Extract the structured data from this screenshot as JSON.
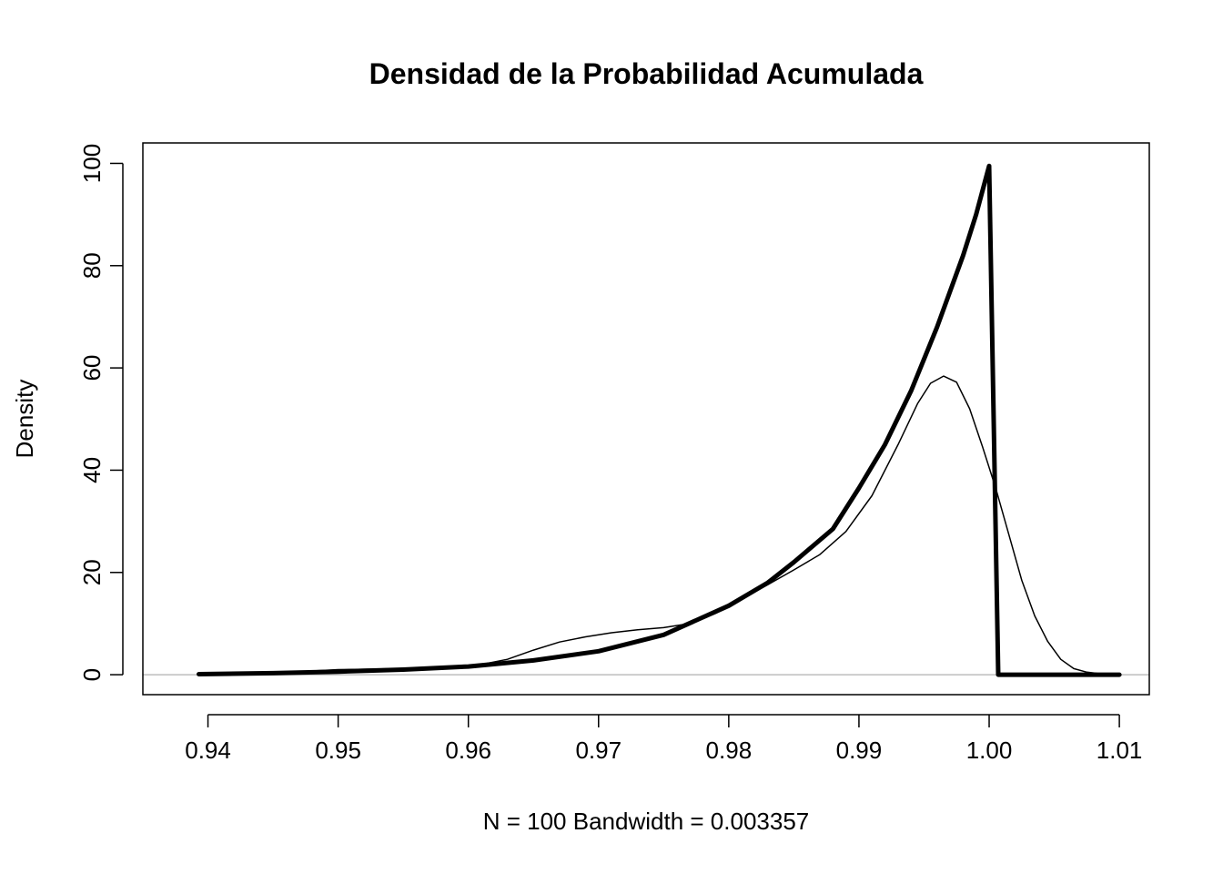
{
  "chart_data": {
    "type": "line",
    "title": "Densidad de la Probabilidad Acumulada",
    "xlabel": "N = 100   Bandwidth = 0.003357",
    "ylabel": "Density",
    "xlim": [
      0.935,
      1.0123
    ],
    "ylim": [
      -3.9,
      104
    ],
    "x_ticks": [
      0.94,
      0.95,
      0.96,
      0.97,
      0.98,
      0.99,
      1.0,
      1.01
    ],
    "x_tick_labels": [
      "0.94",
      "0.95",
      "0.96",
      "0.97",
      "0.98",
      "0.99",
      "1.00",
      "1.01"
    ],
    "y_ticks": [
      0,
      20,
      40,
      60,
      80,
      100
    ],
    "y_tick_labels": [
      "0",
      "20",
      "40",
      "60",
      "80",
      "100"
    ],
    "grid": false,
    "zero_line": true,
    "colors": {
      "lines": "#000000",
      "zero_line": "#bebebe",
      "frame": "#000000"
    },
    "series": [
      {
        "style": "thin",
        "points": [
          [
            0.9393,
            0.1
          ],
          [
            0.943,
            0.2
          ],
          [
            0.947,
            0.6
          ],
          [
            0.95,
            1.0
          ],
          [
            0.953,
            1.1
          ],
          [
            0.956,
            1.3
          ],
          [
            0.959,
            1.6
          ],
          [
            0.961,
            2.0
          ],
          [
            0.963,
            3.0
          ],
          [
            0.965,
            4.8
          ],
          [
            0.967,
            6.4
          ],
          [
            0.969,
            7.4
          ],
          [
            0.971,
            8.2
          ],
          [
            0.973,
            8.8
          ],
          [
            0.975,
            9.2
          ],
          [
            0.977,
            10.0
          ],
          [
            0.979,
            12.0
          ],
          [
            0.981,
            14.8
          ],
          [
            0.983,
            17.6
          ],
          [
            0.985,
            20.5
          ],
          [
            0.987,
            23.5
          ],
          [
            0.989,
            28.0
          ],
          [
            0.991,
            35.0
          ],
          [
            0.993,
            45.0
          ],
          [
            0.9945,
            53.0
          ],
          [
            0.9955,
            57.0
          ],
          [
            0.9965,
            58.4
          ],
          [
            0.9975,
            57.2
          ],
          [
            0.9985,
            52.0
          ],
          [
            0.9995,
            44.5
          ],
          [
            1.0005,
            36.5
          ],
          [
            1.0015,
            27.5
          ],
          [
            1.0025,
            18.5
          ],
          [
            1.0035,
            11.5
          ],
          [
            1.0045,
            6.5
          ],
          [
            1.0055,
            3.0
          ],
          [
            1.0065,
            1.2
          ],
          [
            1.0075,
            0.5
          ],
          [
            1.0085,
            0.2
          ],
          [
            1.01,
            0.0
          ]
        ]
      },
      {
        "style": "thick",
        "points": [
          [
            0.9393,
            0.1
          ],
          [
            0.945,
            0.3
          ],
          [
            0.95,
            0.6
          ],
          [
            0.955,
            1.0
          ],
          [
            0.96,
            1.6
          ],
          [
            0.965,
            2.8
          ],
          [
            0.97,
            4.6
          ],
          [
            0.975,
            7.8
          ],
          [
            0.98,
            13.5
          ],
          [
            0.983,
            18.0
          ],
          [
            0.985,
            22.0
          ],
          [
            0.988,
            28.5
          ],
          [
            0.99,
            36.5
          ],
          [
            0.992,
            45.0
          ],
          [
            0.994,
            55.5
          ],
          [
            0.996,
            68.0
          ],
          [
            0.998,
            82.0
          ],
          [
            0.999,
            90.0
          ],
          [
            1.0,
            99.5
          ],
          [
            1.0007,
            0.0
          ],
          [
            1.01,
            0.0
          ]
        ]
      }
    ]
  }
}
